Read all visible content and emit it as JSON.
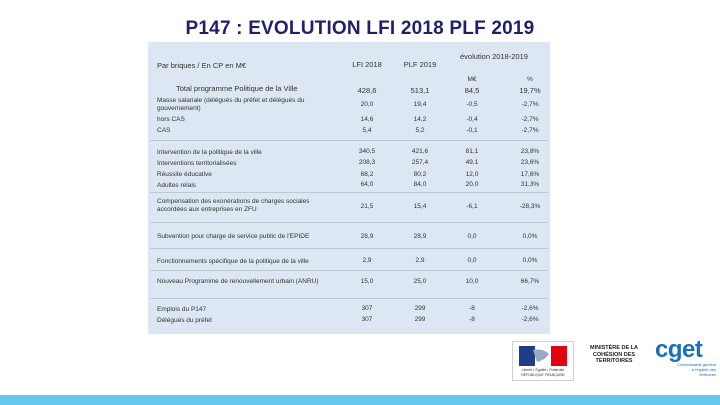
{
  "title": "P147 : EVOLUTION LFI 2018 PLF 2019",
  "header": {
    "label": "Par briques / En CP en M€",
    "col_lfi": "LFI 2018",
    "col_plf": "PLF 2019",
    "col_evo": "évolution 2018-2019",
    "sub_meur": "M€",
    "sub_pct": "%"
  },
  "rows": [
    {
      "label": "Total programme Politique de la Ville",
      "lfi": "428,6",
      "plf": "513,1",
      "evo": "84,5",
      "pct": "19,7%"
    },
    {
      "label": "Masse salariale (délégués du préfet et délégués du gouvernement)",
      "lfi": "20,0",
      "plf": "19,4",
      "evo": "-0,5",
      "pct": "-2,7%"
    },
    {
      "label": "hors CAS",
      "lfi": "14,6",
      "plf": "14,2",
      "evo": "-0,4",
      "pct": "-2,7%"
    },
    {
      "label": "CAS",
      "lfi": "5,4",
      "plf": "5,2",
      "evo": "-0,1",
      "pct": "-2,7%"
    },
    {
      "label": "Intervention de la politique de la ville",
      "lfi": "340,5",
      "plf": "421,6",
      "evo": "81,1",
      "pct": "23,8%"
    },
    {
      "label": "Interventions territorialisées",
      "lfi": "208,3",
      "plf": "257,4",
      "evo": "49,1",
      "pct": "23,6%"
    },
    {
      "label": "Réussite éducative",
      "lfi": "68,2",
      "plf": "80,2",
      "evo": "12,0",
      "pct": "17,6%"
    },
    {
      "label": "Adultes relais",
      "lfi": "64,0",
      "plf": "84,0",
      "evo": "20,0",
      "pct": "31,3%"
    },
    {
      "label": "Compensation des exonérations de charges sociales accordées aux entreprises en ZFU",
      "lfi": "21,5",
      "plf": "15,4",
      "evo": "-6,1",
      "pct": "-28,3%"
    },
    {
      "label": "Subvention pour charge de service public de l'EPIDE",
      "lfi": "28,9",
      "plf": "28,9",
      "evo": "0,0",
      "pct": "0,0%"
    },
    {
      "label": "Fonctionnements spécifique de la politique de la ville",
      "lfi": "2,9",
      "plf": "2,9",
      "evo": "0,0",
      "pct": "0,0%"
    },
    {
      "label": "Nouveau Programme de renouvellement urbain (ANRU)",
      "lfi": "15,0",
      "plf": "25,0",
      "evo": "10,0",
      "pct": "66,7%"
    },
    {
      "label": "Emplois du P147",
      "lfi": "307",
      "plf": "299",
      "evo": "-8",
      "pct": "-2,6%"
    },
    {
      "label": "Délégués du préfet",
      "lfi": "307",
      "plf": "299",
      "evo": "-8",
      "pct": "-2,6%"
    }
  ],
  "logos": {
    "marianne": "Liberté • Égalité • Fraternité RÉPUBLIQUE FRANÇAISE",
    "ministry": "MINISTÈRE DE LA COHÉSION DES TERRITOIRES",
    "cget": "cget",
    "cget_sub": "Commissariat général à l'égalité des territoires"
  }
}
